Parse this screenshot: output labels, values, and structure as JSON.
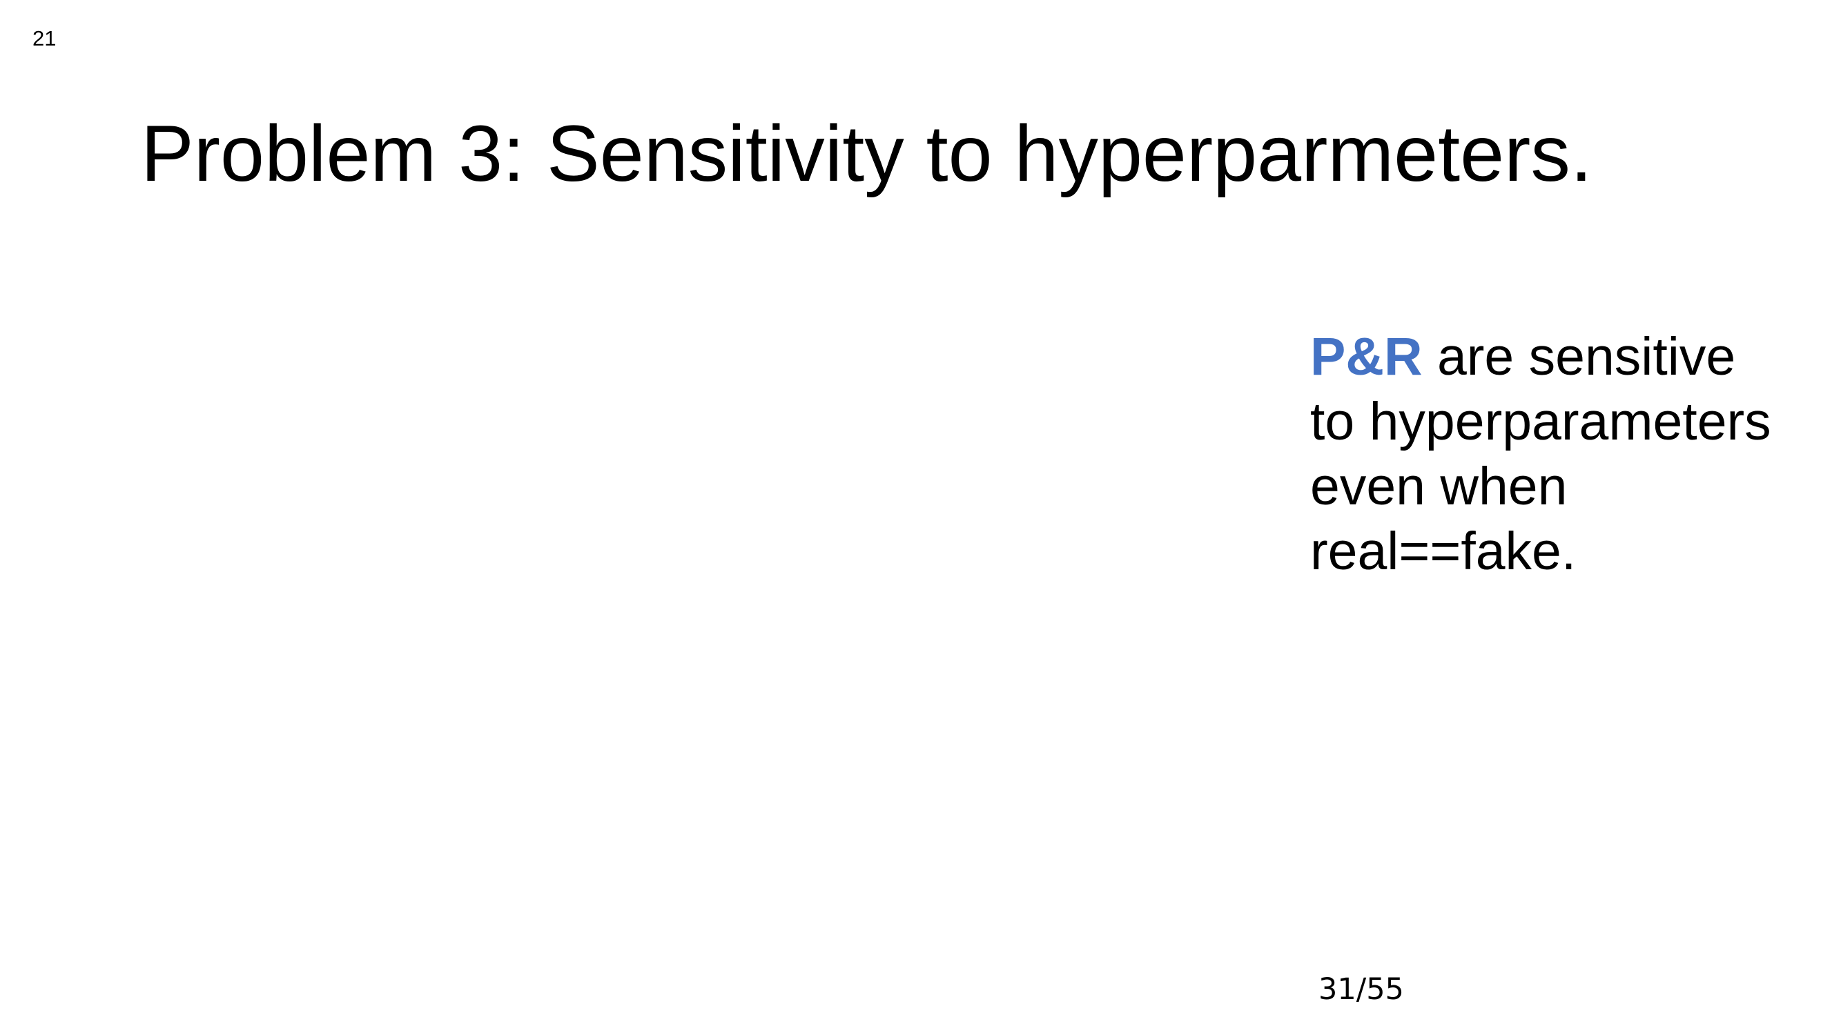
{
  "slide": {
    "corner_number": "21",
    "title": "Problem 3: Sensitivity to hyperparmeters.",
    "body": {
      "highlight": "P&R",
      "line1_rest": " are sensitive",
      "line2": "to hyperparameters",
      "line3": "even when",
      "line4": "real==fake."
    },
    "page_counter": "31/55"
  },
  "colors": {
    "highlight": "#4472C4",
    "text": "#000000",
    "background": "#FFFFFF"
  }
}
